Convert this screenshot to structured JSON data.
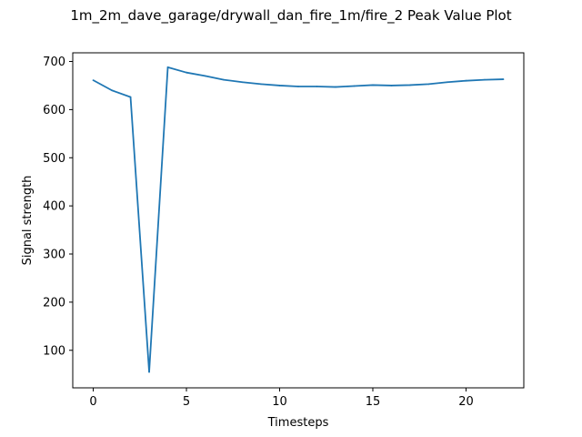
{
  "chart_data": {
    "type": "line",
    "title": "1m_2m_dave_garage/drywall_dan_fire_1m/fire_2 Peak Value Plot",
    "xlabel": "Timesteps",
    "ylabel": "Signal strength",
    "xlim": [
      -1.1,
      23.1
    ],
    "ylim": [
      22,
      718
    ],
    "xticks": [
      0,
      5,
      10,
      15,
      20
    ],
    "yticks": [
      100,
      200,
      300,
      400,
      500,
      600,
      700
    ],
    "grid": false,
    "series": [
      {
        "color": "#1f77b4",
        "x": [
          0,
          1,
          2,
          3,
          4,
          5,
          6,
          7,
          8,
          9,
          10,
          11,
          12,
          13,
          14,
          15,
          16,
          17,
          18,
          19,
          20,
          21,
          22
        ],
        "values": [
          661,
          640,
          626,
          55,
          688,
          677,
          670,
          662,
          657,
          653,
          650,
          648,
          648,
          647,
          649,
          651,
          650,
          651,
          653,
          657,
          660,
          662,
          663
        ]
      }
    ]
  }
}
